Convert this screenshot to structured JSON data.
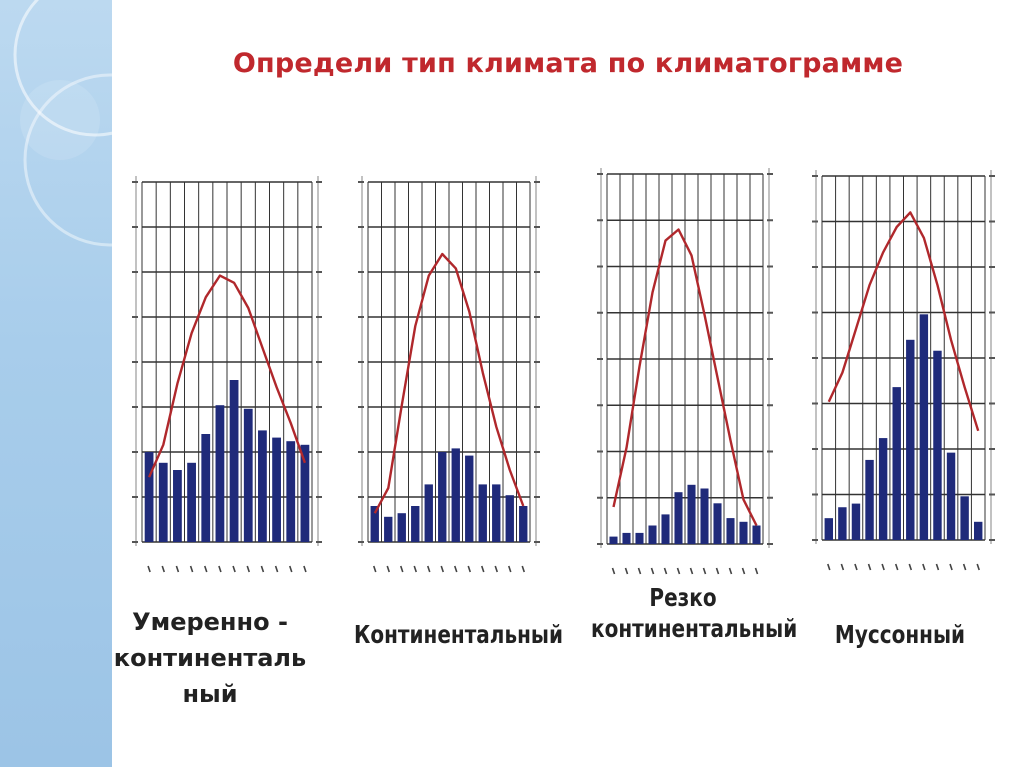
{
  "title": "Определи тип климата по климатограмме",
  "colors": {
    "title": "#c0282d",
    "temperature_line": "#b0282c",
    "precipitation_bars": "#1f2a7a",
    "grid": "#333333"
  },
  "chart_data": [
    {
      "type": "bar",
      "label": "Умеренно - континентальный",
      "label_lines": [
        "Умеренно -",
        "континенталь",
        "ный"
      ],
      "months": 12,
      "temperature_trend": [
        0.18,
        0.27,
        0.44,
        0.58,
        0.68,
        0.74,
        0.72,
        0.65,
        0.54,
        0.43,
        0.33,
        0.22
      ],
      "precipitation": [
        0.25,
        0.22,
        0.2,
        0.22,
        0.3,
        0.38,
        0.45,
        0.37,
        0.31,
        0.29,
        0.28,
        0.27
      ]
    },
    {
      "type": "bar",
      "label": "Континентальный",
      "label_lines": [
        "Континентальный"
      ],
      "months": 12,
      "temperature_trend": [
        0.08,
        0.15,
        0.38,
        0.6,
        0.74,
        0.8,
        0.76,
        0.64,
        0.47,
        0.32,
        0.2,
        0.1
      ],
      "precipitation": [
        0.1,
        0.07,
        0.08,
        0.1,
        0.16,
        0.25,
        0.26,
        0.24,
        0.16,
        0.16,
        0.13,
        0.1
      ]
    },
    {
      "type": "bar",
      "label": "Резко континентальный",
      "label_lines": [
        "Резко",
        "континентальный"
      ],
      "months": 12,
      "temperature_trend": [
        0.1,
        0.26,
        0.48,
        0.68,
        0.82,
        0.85,
        0.78,
        0.62,
        0.45,
        0.28,
        0.12,
        0.05
      ],
      "precipitation": [
        0.02,
        0.03,
        0.03,
        0.05,
        0.08,
        0.14,
        0.16,
        0.15,
        0.11,
        0.07,
        0.06,
        0.05
      ]
    },
    {
      "type": "bar",
      "label": "Муссонный",
      "label_lines": [
        "Муссонный"
      ],
      "months": 12,
      "temperature_trend": [
        0.38,
        0.46,
        0.58,
        0.7,
        0.79,
        0.86,
        0.9,
        0.83,
        0.7,
        0.55,
        0.42,
        0.3
      ],
      "precipitation": [
        0.06,
        0.09,
        0.1,
        0.22,
        0.28,
        0.42,
        0.55,
        0.62,
        0.52,
        0.24,
        0.12,
        0.05
      ]
    }
  ]
}
